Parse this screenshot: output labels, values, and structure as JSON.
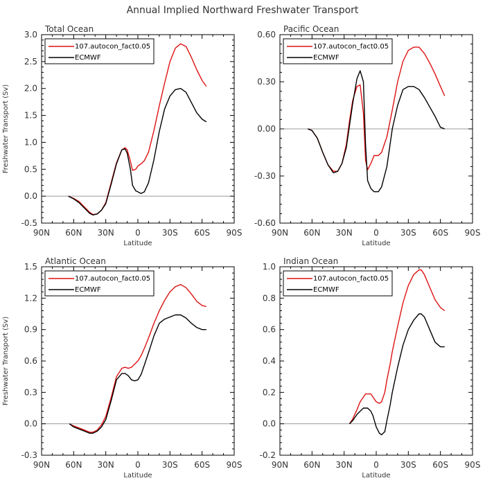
{
  "figure_title": "Annual Implied Northward Freshwater Transport",
  "y_axis_title": "Freshwater Transport (Sv)",
  "x_axis_title": "Latitude",
  "x_ticks": [
    "90N",
    "60N",
    "30N",
    "0",
    "30S",
    "60S",
    "90S"
  ],
  "legend": {
    "series1": "107.autocon_fact0.05",
    "series2": "ECMWF"
  },
  "colors": {
    "series1": "#dd1111",
    "series2": "#000000",
    "zero_line": "#999999"
  },
  "chart_data": [
    {
      "type": "line",
      "title": "Total Ocean",
      "xlabel": "Latitude",
      "ylabel": "Freshwater Transport (Sv)",
      "xlim": [
        90,
        -90
      ],
      "ylim": [
        -0.5,
        3.0
      ],
      "y_ticks": [
        "-0.5",
        "0.0",
        "0.5",
        "1.0",
        "1.5",
        "2.0",
        "2.5",
        "3.0"
      ],
      "series": [
        {
          "name": "107.autocon_fact0.05",
          "x": [
            65,
            60,
            55,
            50,
            45,
            42,
            38,
            34,
            30,
            25,
            20,
            15,
            12,
            10,
            7,
            5,
            2,
            0,
            -3,
            -6,
            -10,
            -15,
            -20,
            -25,
            -30,
            -35,
            -40,
            -45,
            -50,
            -55,
            -60,
            -64
          ],
          "y": [
            0.0,
            -0.04,
            -0.1,
            -0.2,
            -0.3,
            -0.34,
            -0.33,
            -0.26,
            -0.12,
            0.25,
            0.62,
            0.86,
            0.9,
            0.86,
            0.65,
            0.48,
            0.5,
            0.56,
            0.6,
            0.66,
            0.82,
            1.22,
            1.68,
            2.1,
            2.5,
            2.75,
            2.83,
            2.78,
            2.58,
            2.35,
            2.15,
            2.04
          ]
        },
        {
          "name": "ECMWF",
          "x": [
            65,
            60,
            55,
            50,
            45,
            42,
            38,
            34,
            30,
            25,
            20,
            15,
            12,
            10,
            7,
            5,
            2,
            0,
            -3,
            -6,
            -10,
            -15,
            -20,
            -25,
            -30,
            -35,
            -40,
            -45,
            -50,
            -55,
            -60,
            -64
          ],
          "y": [
            0.0,
            -0.05,
            -0.12,
            -0.22,
            -0.32,
            -0.35,
            -0.33,
            -0.26,
            -0.14,
            0.22,
            0.6,
            0.86,
            0.88,
            0.8,
            0.5,
            0.2,
            0.1,
            0.08,
            0.05,
            0.08,
            0.25,
            0.68,
            1.2,
            1.62,
            1.86,
            1.98,
            2.0,
            1.93,
            1.74,
            1.55,
            1.43,
            1.38
          ]
        }
      ]
    },
    {
      "type": "line",
      "title": "Pacific Ocean",
      "xlabel": "Latitude",
      "xlim": [
        90,
        -90
      ],
      "ylim": [
        -0.6,
        0.6
      ],
      "y_ticks": [
        "-0.60",
        "-0.30",
        "0.00",
        "0.30",
        "0.60"
      ],
      "series": [
        {
          "name": "107.autocon_fact0.05",
          "x": [
            64,
            60,
            55,
            50,
            45,
            40,
            36,
            32,
            28,
            25,
            22,
            18,
            15,
            12,
            10,
            8,
            5,
            2,
            0,
            -2,
            -5,
            -10,
            -15,
            -20,
            -25,
            -30,
            -35,
            -40,
            -45,
            -50,
            -55,
            -60,
            -64
          ],
          "y": [
            0.0,
            -0.01,
            -0.06,
            -0.15,
            -0.23,
            -0.27,
            -0.27,
            -0.22,
            -0.1,
            0.05,
            0.18,
            0.27,
            0.28,
            0.1,
            -0.2,
            -0.26,
            -0.22,
            -0.17,
            -0.17,
            -0.17,
            -0.15,
            -0.05,
            0.12,
            0.3,
            0.43,
            0.5,
            0.52,
            0.52,
            0.48,
            0.42,
            0.35,
            0.27,
            0.21
          ]
        },
        {
          "name": "ECMWF",
          "x": [
            64,
            60,
            55,
            50,
            45,
            40,
            36,
            32,
            28,
            25,
            22,
            18,
            15,
            12,
            10,
            8,
            5,
            2,
            0,
            -2,
            -5,
            -10,
            -15,
            -20,
            -25,
            -30,
            -35,
            -40,
            -45,
            -50,
            -55,
            -60,
            -64
          ],
          "y": [
            0.0,
            -0.01,
            -0.06,
            -0.15,
            -0.23,
            -0.28,
            -0.27,
            -0.22,
            -0.12,
            0.02,
            0.16,
            0.32,
            0.37,
            0.3,
            -0.1,
            -0.33,
            -0.38,
            -0.4,
            -0.4,
            -0.4,
            -0.37,
            -0.24,
            0.0,
            0.15,
            0.25,
            0.27,
            0.27,
            0.25,
            0.2,
            0.14,
            0.08,
            0.01,
            0.0
          ]
        }
      ]
    },
    {
      "type": "line",
      "title": "Atlantic Ocean",
      "xlabel": "Latitude",
      "ylabel": "Freshwater Transport (Sv)",
      "xlim": [
        90,
        -90
      ],
      "ylim": [
        -0.3,
        1.5
      ],
      "y_ticks": [
        "-0.3",
        "0.0",
        "0.3",
        "0.6",
        "0.9",
        "1.2",
        "1.5"
      ],
      "series": [
        {
          "name": "107.autocon_fact0.05",
          "x": [
            64,
            60,
            55,
            50,
            45,
            42,
            38,
            34,
            30,
            25,
            20,
            15,
            12,
            9,
            6,
            3,
            0,
            -3,
            -6,
            -10,
            -15,
            -20,
            -25,
            -30,
            -35,
            -40,
            -45,
            -50,
            -55,
            -60,
            -64
          ],
          "y": [
            0.0,
            -0.02,
            -0.04,
            -0.06,
            -0.08,
            -0.08,
            -0.06,
            -0.01,
            0.07,
            0.25,
            0.45,
            0.53,
            0.54,
            0.53,
            0.54,
            0.57,
            0.6,
            0.65,
            0.72,
            0.82,
            0.96,
            1.08,
            1.18,
            1.26,
            1.31,
            1.33,
            1.3,
            1.24,
            1.17,
            1.13,
            1.12
          ]
        },
        {
          "name": "ECMWF",
          "x": [
            64,
            60,
            55,
            50,
            45,
            42,
            38,
            34,
            30,
            25,
            20,
            15,
            12,
            9,
            6,
            3,
            0,
            -3,
            -6,
            -10,
            -15,
            -20,
            -25,
            -30,
            -35,
            -40,
            -45,
            -50,
            -55,
            -60,
            -64
          ],
          "y": [
            0.0,
            -0.03,
            -0.05,
            -0.07,
            -0.09,
            -0.09,
            -0.07,
            -0.03,
            0.04,
            0.22,
            0.42,
            0.48,
            0.48,
            0.46,
            0.42,
            0.41,
            0.42,
            0.47,
            0.56,
            0.68,
            0.84,
            0.96,
            1.0,
            1.02,
            1.04,
            1.04,
            1.01,
            0.96,
            0.92,
            0.9,
            0.9
          ]
        }
      ]
    },
    {
      "type": "line",
      "title": "Indian Ocean",
      "xlabel": "Latitude",
      "xlim": [
        90,
        -90
      ],
      "ylim": [
        -0.2,
        1.0
      ],
      "y_ticks": [
        "-0.2",
        "0.0",
        "0.2",
        "0.4",
        "0.6",
        "0.8",
        "1.0"
      ],
      "series": [
        {
          "name": "107.autocon_fact0.05",
          "x": [
            25,
            22,
            18,
            15,
            12,
            10,
            8,
            5,
            3,
            0,
            -3,
            -5,
            -8,
            -10,
            -13,
            -15,
            -20,
            -25,
            -30,
            -35,
            -40,
            -42,
            -45,
            -50,
            -55,
            -60,
            -64
          ],
          "y": [
            0.0,
            0.03,
            0.09,
            0.14,
            0.17,
            0.19,
            0.19,
            0.19,
            0.17,
            0.14,
            0.13,
            0.14,
            0.2,
            0.28,
            0.38,
            0.46,
            0.62,
            0.77,
            0.88,
            0.95,
            0.98,
            0.98,
            0.95,
            0.87,
            0.79,
            0.74,
            0.72
          ]
        },
        {
          "name": "ECMWF",
          "x": [
            25,
            22,
            18,
            15,
            12,
            10,
            8,
            5,
            3,
            0,
            -3,
            -5,
            -8,
            -10,
            -13,
            -15,
            -20,
            -25,
            -30,
            -35,
            -40,
            -42,
            -45,
            -50,
            -55,
            -60,
            -64
          ],
          "y": [
            0.0,
            0.02,
            0.06,
            0.08,
            0.1,
            0.1,
            0.1,
            0.08,
            0.05,
            -0.02,
            -0.06,
            -0.07,
            -0.05,
            0.02,
            0.12,
            0.2,
            0.36,
            0.5,
            0.6,
            0.66,
            0.7,
            0.7,
            0.68,
            0.6,
            0.52,
            0.49,
            0.49
          ]
        }
      ]
    }
  ]
}
